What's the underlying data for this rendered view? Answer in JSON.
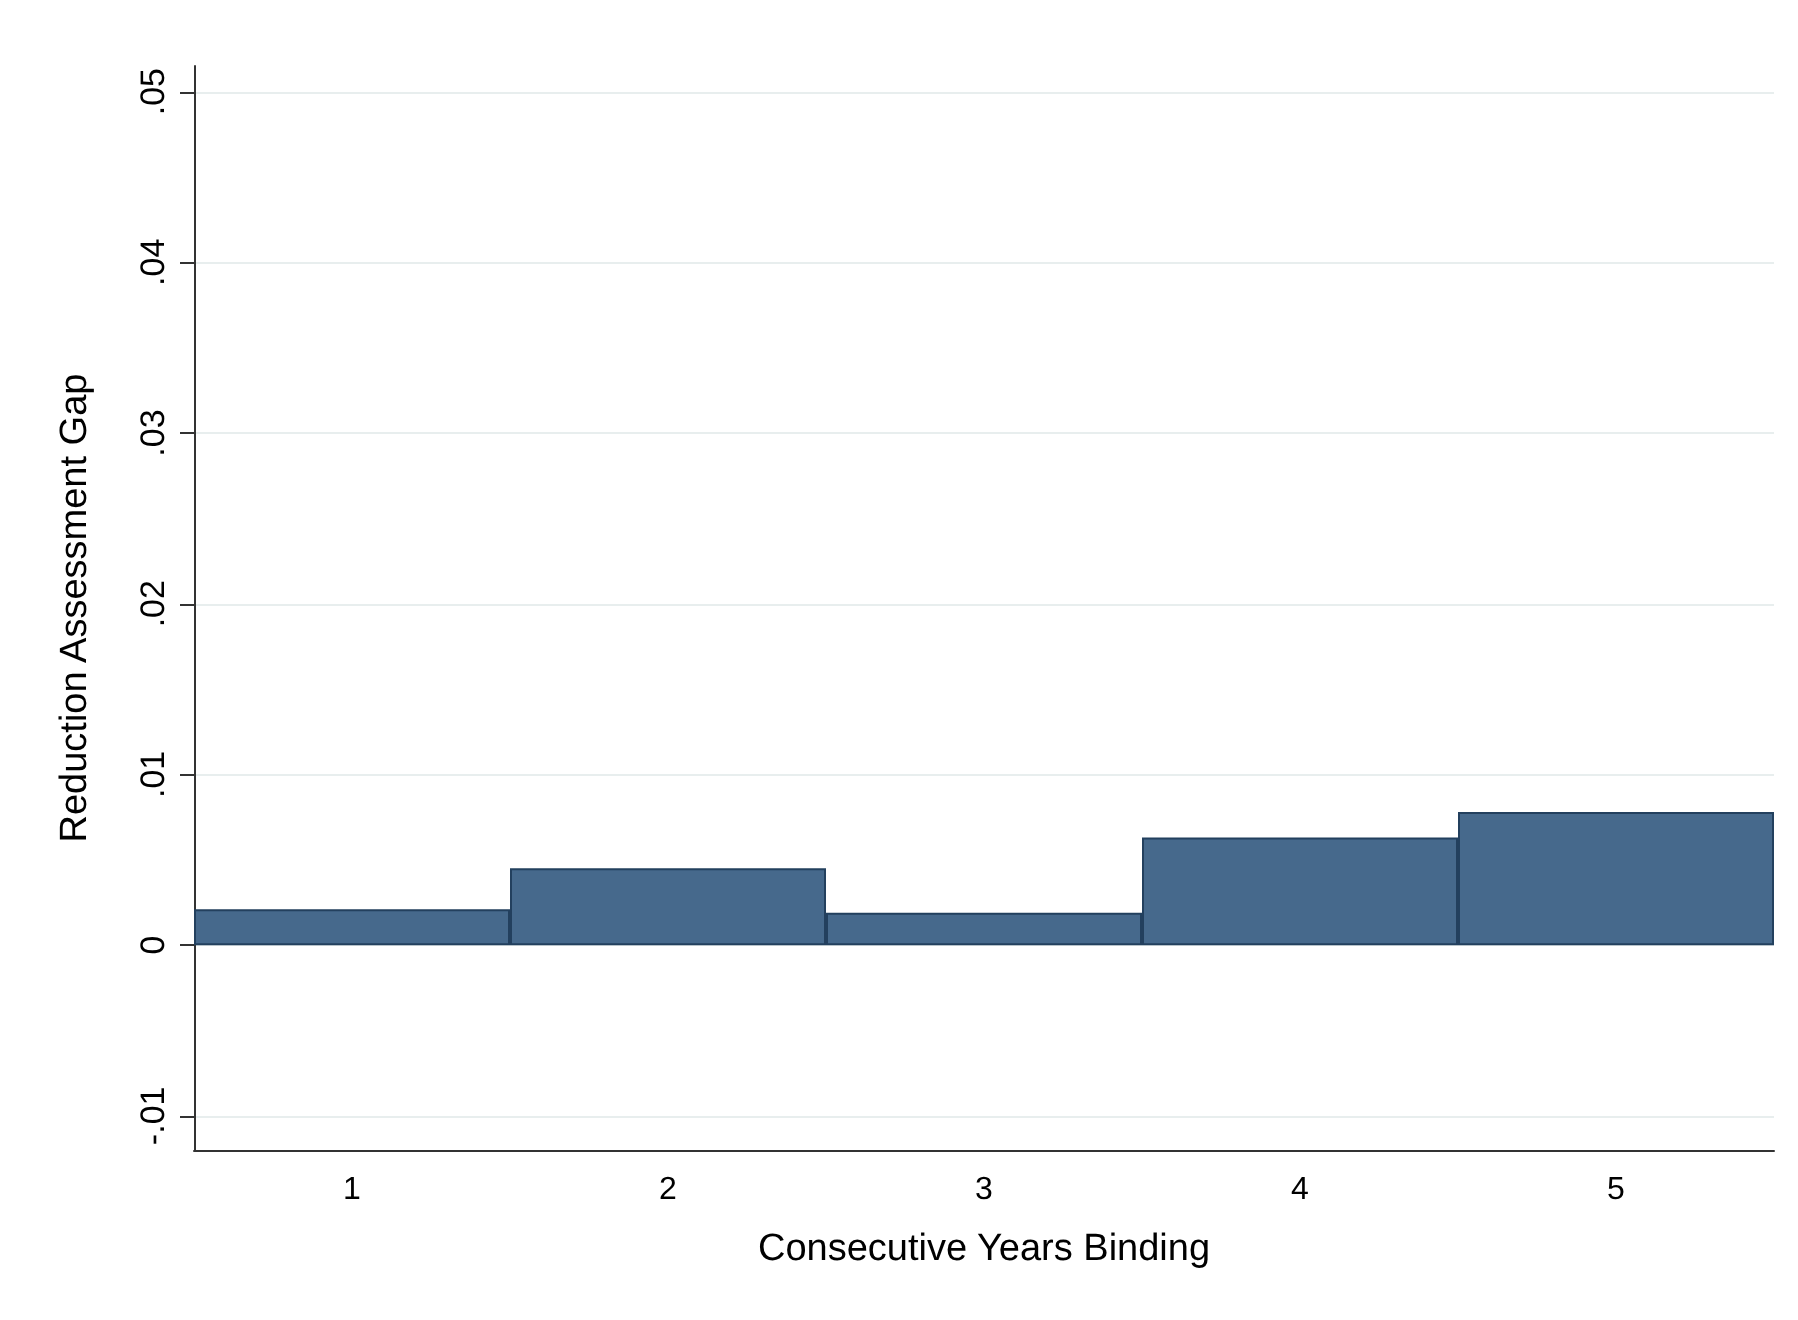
{
  "chart_data": {
    "type": "bar",
    "xlabel": "Consecutive Years Binding",
    "ylabel": "Reduction Assessment Gap",
    "categories": [
      "1",
      "2",
      "3",
      "4",
      "5"
    ],
    "values": [
      0.0021,
      0.0045,
      0.0019,
      0.0063,
      0.0078
    ],
    "color": "#46698c",
    "ylim": [
      -0.012,
      0.0515
    ],
    "yticks": [
      {
        "value": -0.01,
        "label": "-.01"
      },
      {
        "value": 0,
        "label": "0"
      },
      {
        "value": 0.01,
        "label": ".01"
      },
      {
        "value": 0.02,
        "label": ".02"
      },
      {
        "value": 0.03,
        "label": ".03"
      },
      {
        "value": 0.04,
        "label": ".04"
      },
      {
        "value": 0.05,
        "label": ".05"
      }
    ],
    "grid": "y"
  }
}
